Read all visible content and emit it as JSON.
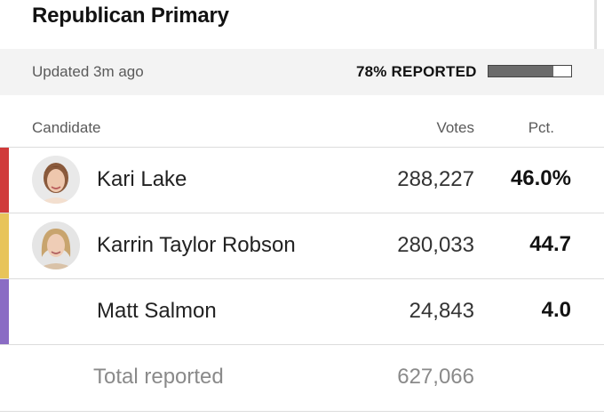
{
  "race": {
    "title": "Republican Primary"
  },
  "status": {
    "updated": "Updated 3m ago",
    "reported_label": "78% REPORTED",
    "reported_fraction": 0.78
  },
  "table": {
    "headers": {
      "candidate": "Candidate",
      "votes": "Votes",
      "pct": "Pct."
    },
    "rows": [
      {
        "name": "Kari Lake",
        "votes": "288,227",
        "pct": "46.0%",
        "color": "#d03a3a",
        "avatar": "photo"
      },
      {
        "name": "Karrin Taylor Robson",
        "votes": "280,033",
        "pct": "44.7",
        "color": "#e8c45a",
        "avatar": "photo"
      },
      {
        "name": "Matt Salmon",
        "votes": "24,843",
        "pct": "4.0",
        "color": "#8a6cc4",
        "avatar": "none"
      }
    ],
    "total": {
      "label": "Total reported",
      "votes": "627,066"
    }
  },
  "colors": {
    "background": "#ffffff",
    "status_bar": "#f3f3f3",
    "progress_fill": "#6b6b6b"
  }
}
